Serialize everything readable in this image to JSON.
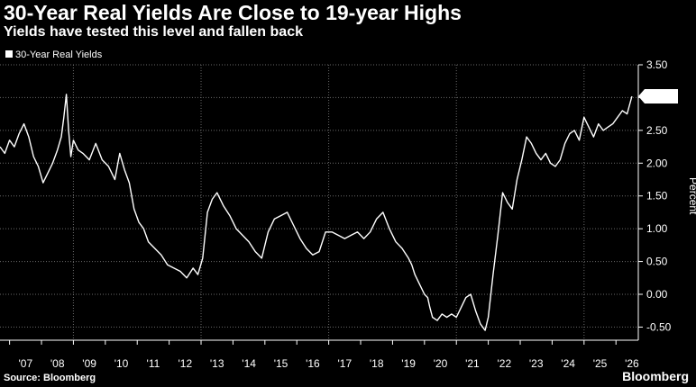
{
  "header": {
    "title": "30-Year Real Yields Are Close to 19-year Highs",
    "subtitle": "Yields have tested this level and fallen back"
  },
  "footer": {
    "source": "Source: Bloomberg",
    "brand": "Bloomberg"
  },
  "chart_data": {
    "type": "line",
    "ylabel": "Percent",
    "ylim": [
      -0.7,
      3.5
    ],
    "yticks": [
      3.5,
      3.0,
      2.5,
      2.0,
      1.5,
      1.0,
      0.5,
      0.0,
      -0.5
    ],
    "ytick_labels": [
      "3.50",
      "3.00",
      "2.50",
      "2.00",
      "1.50",
      "1.00",
      "0.50",
      "0.00",
      "-0.50"
    ],
    "xlim": [
      2006.7,
      2026.7
    ],
    "xtick_labels": [
      "'07",
      "'08",
      "'09",
      "'10",
      "'11",
      "'12",
      "'13",
      "'14",
      "'15",
      "'16",
      "'17",
      "'18",
      "'19",
      "'20",
      "'21",
      "'22",
      "'23",
      "'24",
      "'25",
      "'26"
    ],
    "grid": true,
    "legend": "top-left",
    "last_value_label": "3.02",
    "colors": {
      "line": "#ffffff",
      "background": "#000000"
    },
    "series": [
      {
        "name": "30-Year Real Yields",
        "x": [
          2006.7,
          2006.85,
          2007.0,
          2007.15,
          2007.3,
          2007.45,
          2007.6,
          2007.75,
          2007.9,
          2008.05,
          2008.2,
          2008.35,
          2008.5,
          2008.62,
          2008.7,
          2008.78,
          2008.85,
          2008.92,
          2009.0,
          2009.15,
          2009.3,
          2009.5,
          2009.7,
          2009.9,
          2010.1,
          2010.3,
          2010.45,
          2010.6,
          2010.75,
          2010.9,
          2011.05,
          2011.2,
          2011.35,
          2011.55,
          2011.75,
          2011.95,
          2012.15,
          2012.35,
          2012.55,
          2012.75,
          2012.9,
          2013.05,
          2013.2,
          2013.35,
          2013.5,
          2013.7,
          2013.9,
          2014.1,
          2014.3,
          2014.5,
          2014.7,
          2014.9,
          2015.1,
          2015.3,
          2015.5,
          2015.7,
          2015.9,
          2016.1,
          2016.3,
          2016.5,
          2016.7,
          2016.9,
          2017.1,
          2017.3,
          2017.5,
          2017.7,
          2017.9,
          2018.1,
          2018.3,
          2018.5,
          2018.7,
          2018.9,
          2019.1,
          2019.3,
          2019.5,
          2019.6,
          2019.7,
          2019.85,
          2020.0,
          2020.1,
          2020.17,
          2020.25,
          2020.4,
          2020.55,
          2020.7,
          2020.85,
          2021.0,
          2021.15,
          2021.3,
          2021.45,
          2021.6,
          2021.75,
          2021.9,
          2022.0,
          2022.15,
          2022.3,
          2022.45,
          2022.6,
          2022.75,
          2022.9,
          2023.05,
          2023.2,
          2023.35,
          2023.5,
          2023.65,
          2023.8,
          2023.95,
          2024.1,
          2024.25,
          2024.4,
          2024.55,
          2024.7,
          2024.85,
          2025.0,
          2025.15,
          2025.3,
          2025.45,
          2025.6,
          2025.75,
          2025.9,
          2026.05,
          2026.2,
          2026.35,
          2026.5
        ],
        "values": [
          2.25,
          2.15,
          2.35,
          2.25,
          2.45,
          2.6,
          2.4,
          2.1,
          1.95,
          1.7,
          1.85,
          2.0,
          2.2,
          2.4,
          2.7,
          3.05,
          2.5,
          2.1,
          2.35,
          2.2,
          2.15,
          2.05,
          2.3,
          2.05,
          1.95,
          1.75,
          2.15,
          1.9,
          1.7,
          1.3,
          1.1,
          1.0,
          0.8,
          0.7,
          0.6,
          0.45,
          0.4,
          0.35,
          0.25,
          0.4,
          0.3,
          0.55,
          1.25,
          1.45,
          1.55,
          1.35,
          1.2,
          1.0,
          0.9,
          0.8,
          0.65,
          0.55,
          0.95,
          1.15,
          1.2,
          1.25,
          1.05,
          0.85,
          0.7,
          0.6,
          0.65,
          0.95,
          0.95,
          0.9,
          0.85,
          0.9,
          0.95,
          0.85,
          0.95,
          1.15,
          1.25,
          1.0,
          0.8,
          0.7,
          0.55,
          0.45,
          0.3,
          0.15,
          0.0,
          -0.05,
          -0.2,
          -0.35,
          -0.4,
          -0.3,
          -0.35,
          -0.3,
          -0.35,
          -0.2,
          -0.05,
          0.0,
          -0.25,
          -0.45,
          -0.55,
          -0.35,
          0.3,
          0.9,
          1.55,
          1.4,
          1.3,
          1.75,
          2.05,
          2.4,
          2.3,
          2.15,
          2.05,
          2.15,
          2.0,
          1.95,
          2.05,
          2.3,
          2.45,
          2.5,
          2.35,
          2.7,
          2.55,
          2.4,
          2.6,
          2.5,
          2.55,
          2.6,
          2.7,
          2.8,
          2.75,
          3.02
        ]
      }
    ]
  }
}
